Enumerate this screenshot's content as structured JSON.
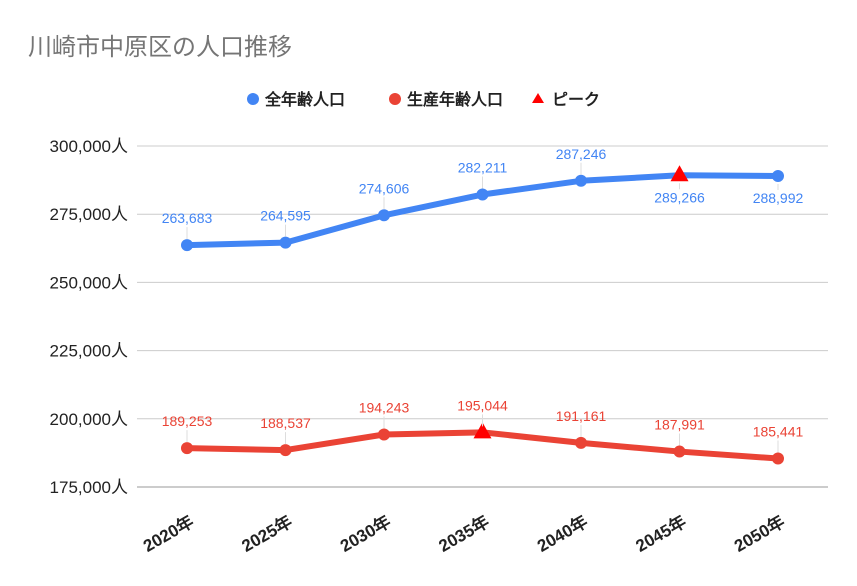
{
  "chart_data": {
    "type": "line",
    "title": "川崎市中原区の人口推移",
    "categories": [
      "2020年",
      "2025年",
      "2030年",
      "2035年",
      "2040年",
      "2045年",
      "2050年"
    ],
    "series": [
      {
        "name": "全年齢人口",
        "color": "#4285f4",
        "values": [
          263683,
          264595,
          274606,
          282211,
          287246,
          289266,
          288992
        ],
        "labels": [
          "263,683",
          "264,595",
          "274,606",
          "282,211",
          "287,246",
          "289,266",
          "288,992"
        ],
        "peak_index": 5
      },
      {
        "name": "生産年齢人口",
        "color": "#ea4335",
        "values": [
          189253,
          188537,
          194243,
          195044,
          191161,
          187991,
          185441
        ],
        "labels": [
          "189,253",
          "188,537",
          "194,243",
          "195,044",
          "191,161",
          "187,991",
          "185,441"
        ],
        "peak_index": 3
      }
    ],
    "peak_marker": {
      "name": "ピーク",
      "color": "#ff0000",
      "shape": "triangle"
    },
    "yticks": [
      175000,
      200000,
      225000,
      250000,
      275000,
      300000
    ],
    "ytick_labels": [
      "175,000人",
      "200,000人",
      "225,000人",
      "250,000人",
      "275,000人",
      "300,000人"
    ],
    "ylim": [
      175000,
      300000
    ],
    "xlabel": "",
    "ylabel": "",
    "grid": true,
    "legend_position": "top-center"
  }
}
